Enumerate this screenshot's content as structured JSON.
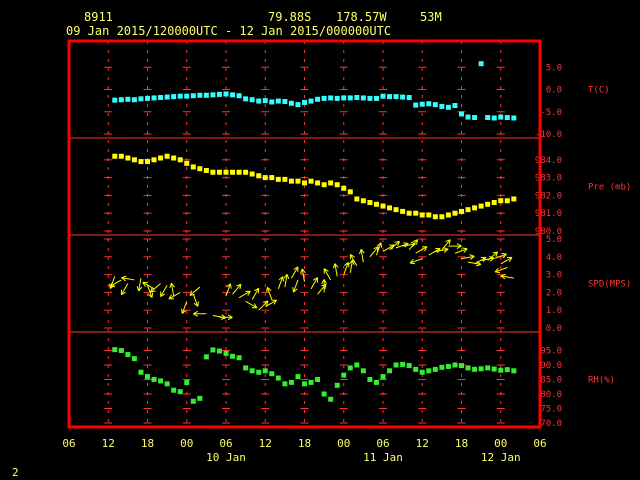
{
  "header": {
    "station": "8911",
    "lat": "79.88S",
    "lon": "178.57W",
    "elev": "53M",
    "period": "09 Jan 2015/120000UTC - 12 Jan 2015/000000UTC"
  },
  "footer": {
    "page": "2"
  },
  "colors": {
    "frame": "#ff0000",
    "grid": "#ff3333",
    "axis_text": "#ff3333",
    "time_text": "#ffff66",
    "temp": "#33ffff",
    "pres": "#ffff00",
    "wind": "#ffff00",
    "rh": "#33ee33"
  },
  "chart_data": {
    "type": "scatter",
    "x_unit": "hours since 09 Jan 2015 06 UTC",
    "x_range": [
      0,
      72
    ],
    "x_ticks": {
      "hours": [
        0,
        6,
        12,
        18,
        24,
        30,
        36,
        42,
        48,
        54,
        60,
        66,
        72
      ],
      "labels": [
        "06",
        "12",
        "18",
        "00",
        "06",
        "12",
        "18",
        "00",
        "06",
        "12",
        "18",
        "00",
        "06"
      ]
    },
    "date_labels": [
      {
        "label": "10 Jan",
        "hour": 24
      },
      {
        "label": "11 Jan",
        "hour": 48
      },
      {
        "label": "12 Jan",
        "hour": 66
      }
    ],
    "grid": true,
    "panels": [
      {
        "key": "temp",
        "label": "T(C)",
        "ylim": [
          -10,
          10
        ],
        "ticks": [
          5,
          0,
          -5,
          -10
        ],
        "tick_labels": [
          "5.0",
          "0.0",
          "-5.0",
          "-10.0"
        ],
        "label_at": 0,
        "x": [
          7,
          8,
          9,
          10,
          11,
          12,
          13,
          14,
          15,
          16,
          17,
          18,
          19,
          20,
          21,
          22,
          23,
          24,
          25,
          26,
          27,
          28,
          29,
          30,
          31,
          32,
          33,
          34,
          35,
          36,
          37,
          38,
          39,
          40,
          41,
          42,
          43,
          44,
          45,
          46,
          47,
          48,
          49,
          50,
          51,
          52,
          53,
          54,
          55,
          56,
          57,
          58,
          59,
          60,
          61,
          62,
          63,
          64,
          65,
          66,
          67,
          68
        ],
        "values": [
          -2.4,
          -2.3,
          -2.2,
          -2.3,
          -2.1,
          -2.0,
          -1.9,
          -1.8,
          -1.7,
          -1.6,
          -1.5,
          -1.5,
          -1.4,
          -1.3,
          -1.3,
          -1.2,
          -1.1,
          -1.0,
          -1.2,
          -1.4,
          -2.1,
          -2.3,
          -2.6,
          -2.5,
          -2.8,
          -2.6,
          -2.7,
          -3.1,
          -3.4,
          -2.9,
          -2.6,
          -2.2,
          -2.0,
          -1.9,
          -2.0,
          -1.9,
          -1.9,
          -1.8,
          -1.9,
          -2.0,
          -2.0,
          -1.5,
          -1.6,
          -1.6,
          -1.7,
          -1.8,
          -3.5,
          -3.3,
          -3.2,
          -3.4,
          -3.8,
          -4.0,
          -3.6,
          -5.5,
          -6.2,
          -6.3,
          5.8,
          -6.3,
          -6.4,
          -6.2,
          -6.3,
          -6.4
        ]
      },
      {
        "key": "pres",
        "label": "Pre (mb)",
        "ylim": [
          980,
          985
        ],
        "ticks": [
          984,
          983,
          982,
          981,
          980
        ],
        "tick_labels": [
          "984.0",
          "983.0",
          "982.0",
          "981.0",
          "980.0"
        ],
        "label_at": 982.5,
        "x": [
          7,
          8,
          9,
          10,
          11,
          12,
          13,
          14,
          15,
          16,
          17,
          18,
          19,
          20,
          21,
          22,
          23,
          24,
          25,
          26,
          27,
          28,
          29,
          30,
          31,
          32,
          33,
          34,
          35,
          36,
          37,
          38,
          39,
          40,
          41,
          42,
          43,
          44,
          45,
          46,
          47,
          48,
          49,
          50,
          51,
          52,
          53,
          54,
          55,
          56,
          57,
          58,
          59,
          60,
          61,
          62,
          63,
          64,
          65,
          66,
          67,
          68
        ],
        "values": [
          984.2,
          984.2,
          984.1,
          984.0,
          983.9,
          983.9,
          984.0,
          984.1,
          984.2,
          984.1,
          984.0,
          983.8,
          983.6,
          983.5,
          983.4,
          983.3,
          983.3,
          983.3,
          983.3,
          983.3,
          983.3,
          983.2,
          983.1,
          983.0,
          983.0,
          982.9,
          982.9,
          982.8,
          982.8,
          982.7,
          982.8,
          982.7,
          982.6,
          982.7,
          982.6,
          982.4,
          982.2,
          981.8,
          981.7,
          981.6,
          981.5,
          981.4,
          981.3,
          981.2,
          981.1,
          981.0,
          981.0,
          980.9,
          980.9,
          980.8,
          980.8,
          980.9,
          981.0,
          981.1,
          981.2,
          981.3,
          981.4,
          981.5,
          981.6,
          981.7,
          981.7,
          981.8
        ]
      },
      {
        "key": "wind",
        "label": "SPD(MPS)",
        "ylim": [
          0,
          5
        ],
        "ticks": [
          5,
          4,
          3,
          2,
          1,
          0
        ],
        "tick_labels": [
          "5.0",
          "4.0",
          "3.0",
          "2.0",
          "1.0",
          "0.0"
        ],
        "label_at": 2.5,
        "x": [
          7,
          8,
          9,
          10,
          11,
          12,
          13,
          14,
          15,
          16,
          17,
          18,
          19,
          20,
          21,
          22,
          23,
          24,
          25,
          26,
          27,
          28,
          29,
          30,
          31,
          32,
          33,
          34,
          35,
          36,
          37,
          38,
          39,
          40,
          41,
          42,
          43,
          44,
          45,
          46,
          47,
          48,
          49,
          50,
          51,
          52,
          53,
          54,
          55,
          56,
          57,
          58,
          59,
          60,
          61,
          62,
          63,
          64,
          65,
          66,
          67,
          68
        ],
        "values": [
          2.9,
          2.7,
          2.5,
          2.7,
          2.8,
          2.4,
          2.2,
          2.5,
          2.4,
          1.8,
          2.0,
          1.5,
          1.9,
          2.3,
          0.8,
          0.7,
          0.6,
          1.8,
          1.9,
          1.7,
          1.5,
          1.6,
          1.0,
          1.2,
          1.6,
          2.2,
          2.3,
          2.8,
          2.7,
          2.6,
          2.2,
          1.9,
          2.0,
          2.7,
          2.9,
          3.0,
          3.1,
          3.5,
          3.7,
          4.0,
          4.1,
          4.3,
          4.4,
          4.5,
          4.6,
          4.4,
          4.2,
          3.9,
          4.1,
          4.3,
          4.4,
          4.6,
          4.2,
          3.9,
          3.7,
          3.6,
          3.8,
          3.8,
          3.9,
          3.6,
          3.4,
          2.8
        ],
        "dirs": [
          200,
          240,
          210,
          280,
          190,
          160,
          300,
          230,
          210,
          350,
          240,
          200,
          160,
          230,
          270,
          100,
          90,
          20,
          40,
          60,
          120,
          30,
          45,
          60,
          340,
          20,
          10,
          30,
          200,
          350,
          30,
          40,
          0,
          330,
          350,
          20,
          10,
          330,
          350,
          40,
          20,
          60,
          50,
          70,
          80,
          40,
          60,
          250,
          60,
          80,
          40,
          90,
          70,
          80,
          100,
          60,
          80,
          50,
          70,
          60,
          250,
          280
        ]
      },
      {
        "key": "rh",
        "label": "RH(%)",
        "ylim": [
          70,
          100
        ],
        "ticks": [
          95,
          90,
          85,
          80,
          75,
          70
        ],
        "tick_labels": [
          "95.0",
          "90.0",
          "85.0",
          "80.0",
          "75.0",
          "70.0"
        ],
        "label_at": 85,
        "x": [
          7,
          8,
          9,
          10,
          11,
          12,
          13,
          14,
          15,
          16,
          17,
          18,
          19,
          20,
          21,
          22,
          23,
          24,
          25,
          26,
          27,
          28,
          29,
          30,
          31,
          32,
          33,
          34,
          35,
          36,
          37,
          38,
          39,
          40,
          41,
          42,
          43,
          44,
          45,
          46,
          47,
          48,
          49,
          50,
          51,
          52,
          53,
          54,
          55,
          56,
          57,
          58,
          59,
          60,
          61,
          62,
          63,
          64,
          65,
          66,
          67,
          68
        ],
        "values": [
          95.3,
          95.0,
          93.6,
          92.2,
          87.5,
          86.0,
          85.0,
          84.5,
          83.5,
          81.3,
          80.8,
          84.0,
          77.5,
          78.5,
          92.8,
          95.2,
          94.8,
          94.0,
          93.0,
          92.5,
          89.0,
          88.0,
          87.5,
          88.0,
          87.0,
          85.5,
          83.5,
          84.0,
          86.0,
          83.5,
          84.0,
          85.0,
          80.0,
          78.2,
          83.0,
          86.5,
          89.0,
          90.0,
          88.0,
          85.0,
          84.0,
          86.0,
          88.0,
          90.0,
          90.2,
          89.8,
          88.5,
          87.5,
          88.0,
          88.5,
          89.2,
          89.5,
          90.0,
          89.8,
          89.0,
          88.5,
          88.7,
          89.0,
          88.6,
          88.2,
          88.4,
          88.0
        ]
      }
    ]
  }
}
